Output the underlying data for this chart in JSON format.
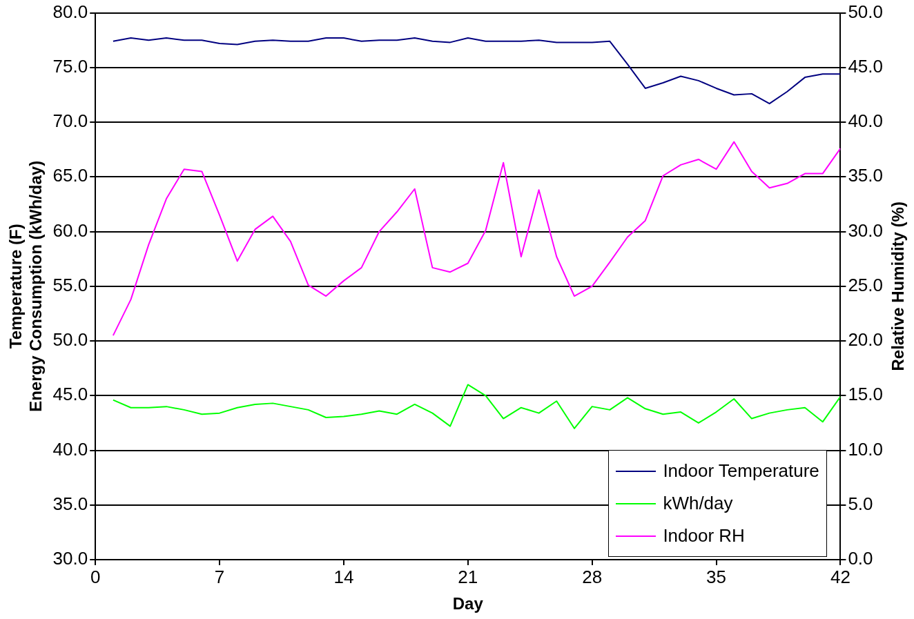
{
  "chart_data": {
    "type": "line",
    "xlabel": "Day",
    "ylabel": "Temperature (F)\nEnergy Consumption (kWh/day)",
    "y2label": "Relative Humidity (%)",
    "x": [
      1,
      2,
      3,
      4,
      5,
      6,
      7,
      8,
      9,
      10,
      11,
      12,
      13,
      14,
      15,
      16,
      17,
      18,
      19,
      20,
      21,
      22,
      23,
      24,
      25,
      26,
      27,
      28,
      29,
      30,
      31,
      32,
      33,
      34,
      35,
      36,
      37,
      38,
      39,
      40,
      41,
      42
    ],
    "series": [
      {
        "name": "Indoor Temperature",
        "color": "#000080",
        "values": [
          77.4,
          77.7,
          77.5,
          77.7,
          77.5,
          77.5,
          77.2,
          77.1,
          77.4,
          77.5,
          77.4,
          77.4,
          77.7,
          77.7,
          77.4,
          77.5,
          77.5,
          77.7,
          77.4,
          77.3,
          77.7,
          77.4,
          77.4,
          77.4,
          77.5,
          77.3,
          77.3,
          77.3,
          77.4,
          75.3,
          73.1,
          73.6,
          74.2,
          73.8,
          73.1,
          72.5,
          72.6,
          71.7,
          72.8,
          74.1,
          74.4,
          74.4
        ]
      },
      {
        "name": "kWh/day",
        "color": "#00ff00",
        "values": [
          44.6,
          43.9,
          43.9,
          44.0,
          43.7,
          43.3,
          43.4,
          43.9,
          44.2,
          44.3,
          44.0,
          43.7,
          43.0,
          43.1,
          43.3,
          43.6,
          43.3,
          44.2,
          43.4,
          42.2,
          46.0,
          45.0,
          42.9,
          43.9,
          43.4,
          44.5,
          42.0,
          44.0,
          43.7,
          44.8,
          43.8,
          43.3,
          43.5,
          42.5,
          43.5,
          44.7,
          42.9,
          43.4,
          43.7,
          43.9,
          42.6,
          44.9
        ]
      },
      {
        "name": "Indoor RH",
        "color": "#ff00ff",
        "axis": "y2",
        "values": [
          20.5,
          23.8,
          28.8,
          33.0,
          35.7,
          35.5,
          31.5,
          27.3,
          30.2,
          31.4,
          29.1,
          25.1,
          24.1,
          25.5,
          26.7,
          30.0,
          31.8,
          33.9,
          26.7,
          26.3,
          27.1,
          30.1,
          36.3,
          27.7,
          33.8,
          27.7,
          24.1,
          25.0,
          27.2,
          29.5,
          31.0,
          35.1,
          36.1,
          36.6,
          35.7,
          38.2,
          35.5,
          34.0,
          34.4,
          35.3,
          35.3,
          37.6
        ]
      }
    ],
    "xlim": [
      0,
      42
    ],
    "xticks": [
      0,
      7,
      14,
      21,
      28,
      35,
      42
    ],
    "ylim": [
      30,
      80
    ],
    "yticks": [
      {
        "value": 30,
        "label": "30.0"
      },
      {
        "value": 35,
        "label": "35.0"
      },
      {
        "value": 40,
        "label": "40.0"
      },
      {
        "value": 45,
        "label": "45.0"
      },
      {
        "value": 50,
        "label": "50.0"
      },
      {
        "value": 55,
        "label": "55.0"
      },
      {
        "value": 60,
        "label": "60.0"
      },
      {
        "value": 65,
        "label": "65.0"
      },
      {
        "value": 70,
        "label": "70.0"
      },
      {
        "value": 75,
        "label": "75.0"
      },
      {
        "value": 80,
        "label": "80.0"
      }
    ],
    "y2lim": [
      0,
      50
    ],
    "y2ticks": [
      {
        "value": 0,
        "label": "0.0"
      },
      {
        "value": 5,
        "label": "5.0"
      },
      {
        "value": 10,
        "label": "10.0"
      },
      {
        "value": 15,
        "label": "15.0"
      },
      {
        "value": 20,
        "label": "20.0"
      },
      {
        "value": 25,
        "label": "25.0"
      },
      {
        "value": 30,
        "label": "30.0"
      },
      {
        "value": 35,
        "label": "35.0"
      },
      {
        "value": 40,
        "label": "40.0"
      },
      {
        "value": 45,
        "label": "45.0"
      },
      {
        "value": 50,
        "label": "50.0"
      }
    ],
    "grid": "y",
    "legend": "bottom right",
    "marker": "none",
    "line_style": "solid"
  }
}
